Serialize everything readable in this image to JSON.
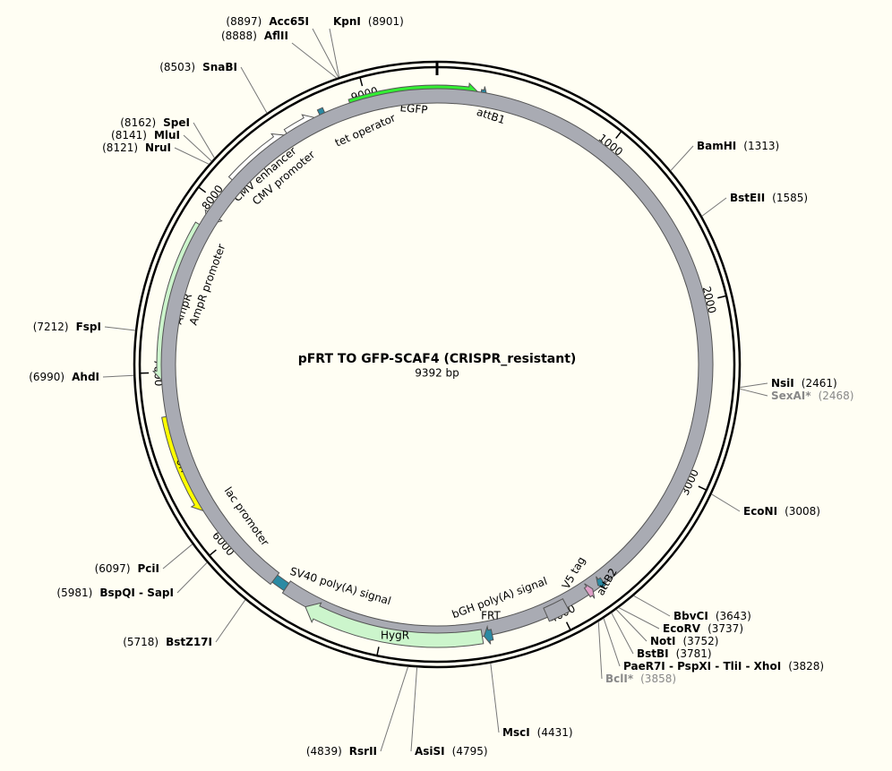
{
  "title": "pFRT TO GFP-SCAF4 (CRISPR_resistant)",
  "length": {
    "value": 9392,
    "label": "9392 bp"
  },
  "ticks": [
    1000,
    2000,
    3000,
    4000,
    5000,
    6000,
    7000,
    8000,
    9000
  ],
  "sites": [
    {
      "name": "Acc65I",
      "position": {
        "value": 8897,
        "label": "(8897)"
      }
    },
    {
      "name": "AflII",
      "position": {
        "value": 8888,
        "label": "(8888)"
      }
    },
    {
      "name": "KpnI",
      "position": {
        "value": 8901,
        "label": "(8901)"
      }
    },
    {
      "name": "SnaBI",
      "position": {
        "value": 8503,
        "label": "(8503)"
      }
    },
    {
      "name": "SpeI",
      "position": {
        "value": 8162,
        "label": "(8162)"
      }
    },
    {
      "name": "MluI",
      "position": {
        "value": 8141,
        "label": "(8141)"
      }
    },
    {
      "name": "NruI",
      "position": {
        "value": 8121,
        "label": "(8121)"
      }
    },
    {
      "name": "FspI",
      "position": {
        "value": 7212,
        "label": "(7212)"
      }
    },
    {
      "name": "AhdI",
      "position": {
        "value": 6990,
        "label": "(6990)"
      }
    },
    {
      "name": "PciI",
      "position": {
        "value": 6097,
        "label": "(6097)"
      }
    },
    {
      "name": "BspQI - SapI",
      "position": {
        "value": 5981,
        "label": "(5981)"
      }
    },
    {
      "name": "BstZ17I",
      "position": {
        "value": 5718,
        "label": "(5718)"
      }
    },
    {
      "name": "RsrII",
      "position": {
        "value": 4839,
        "label": "(4839)"
      }
    },
    {
      "name": "AsiSI",
      "position": {
        "value": 4795,
        "label": "(4795)"
      }
    },
    {
      "name": "MscI",
      "position": {
        "value": 4431,
        "label": "(4431)"
      }
    },
    {
      "name": "BbvCI",
      "position": {
        "value": 3643,
        "label": "(3643)"
      }
    },
    {
      "name": "EcoRV",
      "position": {
        "value": 3737,
        "label": "(3737)"
      }
    },
    {
      "name": "NotI",
      "position": {
        "value": 3752,
        "label": "(3752)"
      }
    },
    {
      "name": "BstBI",
      "position": {
        "value": 3781,
        "label": "(3781)"
      }
    },
    {
      "name": "PaeR7I - PspXI - TliI - XhoI",
      "position": {
        "value": 3828,
        "label": "(3828)"
      }
    },
    {
      "name": "BclI*",
      "position": {
        "value": 3858,
        "label": "(3858)"
      },
      "color": "#888888"
    },
    {
      "name": "EcoNI",
      "position": {
        "value": 3008,
        "label": "(3008)"
      }
    },
    {
      "name": "NsiI",
      "position": {
        "value": 2461,
        "label": "(2461)"
      }
    },
    {
      "name": "SexAI*",
      "position": {
        "value": 2468,
        "label": "(2468)"
      },
      "color": "#888888"
    },
    {
      "name": "BamHI",
      "position": {
        "value": 1313,
        "label": "(1313)"
      }
    },
    {
      "name": "BstEII",
      "position": {
        "value": 1585,
        "label": "(1585)"
      }
    }
  ],
  "features": [
    {
      "name": "EGFP",
      "color": "#33ee33"
    },
    {
      "name": "attB1",
      "color": "#2b8aa3"
    },
    {
      "name": "tet operator",
      "color": "#2b8aa3"
    },
    {
      "name": "CMV enhancer",
      "color": "#ffffff"
    },
    {
      "name": "CMV promoter",
      "color": "#ffffff"
    },
    {
      "name": "AmpR promoter",
      "color": "#ffffff"
    },
    {
      "name": "AmpR",
      "color": "#ccf5cc"
    },
    {
      "name": "ori",
      "color": "#ffff00"
    },
    {
      "name": "lac promoter",
      "color": "#2b8aa3"
    },
    {
      "name": "SV40 poly(A) signal",
      "color": "#a9abb3"
    },
    {
      "name": "HygR",
      "color": "#ccf5cc"
    },
    {
      "name": "FRT",
      "color": "#2b8aa3"
    },
    {
      "name": "bGH poly(A) signal",
      "color": "#a9abb3"
    },
    {
      "name": "V5 tag",
      "color": "#e0a0c8"
    },
    {
      "name": "attB2",
      "color": "#2b8aa3"
    }
  ]
}
